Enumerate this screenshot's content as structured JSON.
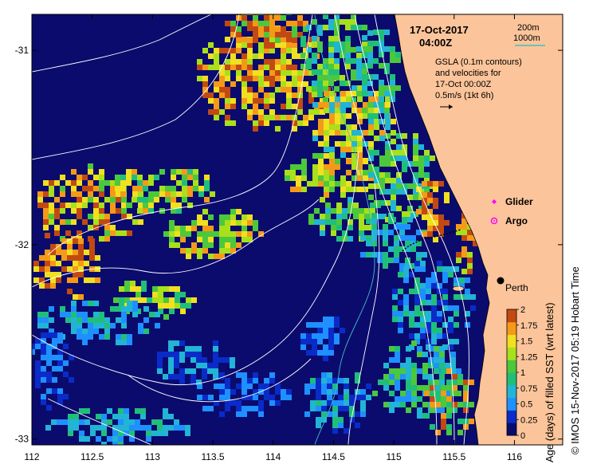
{
  "header": {
    "date": "17-Oct-2017",
    "time": "04:00Z"
  },
  "depth_legend": {
    "shallow": "200m",
    "deep": "1000m",
    "deep_color": "#40c0c0"
  },
  "info": {
    "line1": "GSLA (0.1m contours)",
    "line2": "and velocities for",
    "line3": "17-Oct 00:00Z",
    "line4": "0.5m/s (1kt 6h)"
  },
  "markers": {
    "glider_label": "Glider",
    "glider_color": "#ff00ff",
    "argo_label": "Argo",
    "argo_color": "#ff00ff",
    "city_label": "Perth"
  },
  "axes": {
    "x_ticks": [
      "112",
      "112.5",
      "113",
      "113.5",
      "114",
      "114.5",
      "115",
      "115.5",
      "116"
    ],
    "y_ticks": [
      "-31",
      "-32",
      "-33"
    ],
    "x_values": [
      112,
      112.5,
      113,
      113.5,
      114,
      114.5,
      115,
      115.5,
      116
    ],
    "y_values": [
      -31,
      -32,
      -33
    ]
  },
  "colorbar": {
    "title": "Age (days) of filled SST (wrt latest)",
    "labels": [
      "0",
      "0.25",
      "0.5",
      "0.75",
      "1",
      "1.25",
      "1.5",
      "1.75",
      "2"
    ],
    "colors": [
      "#0b0b6e",
      "#0a2bc8",
      "#1e90ff",
      "#22b4d4",
      "#1fbf7a",
      "#4cc83c",
      "#a8e01c",
      "#f0e020",
      "#f59a18",
      "#c24a12"
    ]
  },
  "credit": "© IMOS 15-Nov-2017 05:19 Hobart Time",
  "colors": {
    "land": "#fcc49a",
    "ocean_deep": "#0b0b6e"
  }
}
